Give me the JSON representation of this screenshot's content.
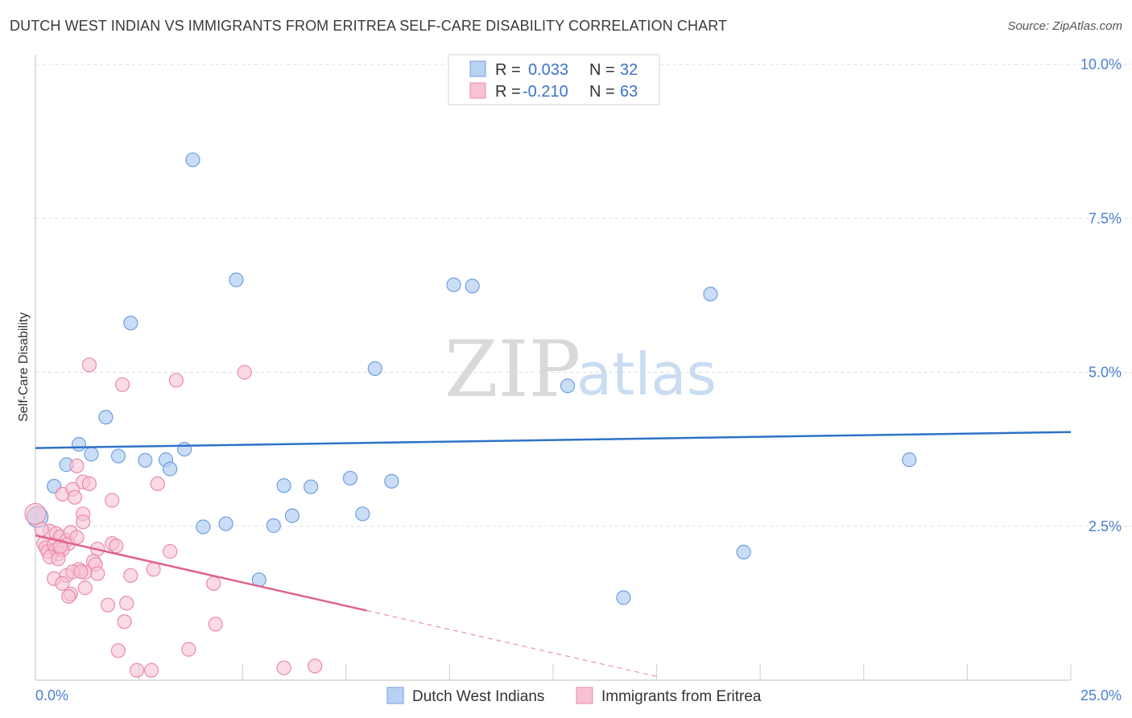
{
  "header": {
    "title": "DUTCH WEST INDIAN VS IMMIGRANTS FROM ERITREA SELF-CARE DISABILITY CORRELATION CHART",
    "source": "Source: ZipAtlas.com"
  },
  "watermark": {
    "zip": "ZIP",
    "atlas": "atlas"
  },
  "colors": {
    "blue_fill": "#b8d2f3",
    "blue_stroke": "#6e9fe0",
    "blue_line": "#2f72c8",
    "pink_fill": "#f7c3d3",
    "pink_stroke": "#ec8aa8",
    "pink_line": "#e0628d",
    "grid": "#dddddd",
    "tick_label": "#4a7fd0"
  },
  "legend": {
    "rows": [
      {
        "r_label": "R =",
        "r_value": "0.033",
        "n_label": "N =",
        "n_value": "32"
      },
      {
        "r_label": "R =",
        "r_value": "-0.210",
        "n_label": "N =",
        "n_value": "63"
      }
    ]
  },
  "chart_data": {
    "type": "scatter",
    "title": "DUTCH WEST INDIAN VS IMMIGRANTS FROM ERITREA SELF-CARE DISABILITY CORRELATION CHART",
    "xlabel": "",
    "ylabel": "Self-Care Disability",
    "xlim": [
      0,
      25
    ],
    "ylim": [
      0,
      10
    ],
    "x_tick_labels": [
      {
        "value": 0,
        "label": "0.0%"
      },
      {
        "value": 25,
        "label": "25.0%"
      }
    ],
    "y_tick_labels": [
      {
        "value": 2.5,
        "label": "2.5%"
      },
      {
        "value": 5.0,
        "label": "5.0%"
      },
      {
        "value": 7.5,
        "label": "7.5%"
      },
      {
        "value": 10.0,
        "label": "10.0%"
      }
    ],
    "grid": true,
    "legend_position": "top-center",
    "series": [
      {
        "name": "Dutch West Indians",
        "color": "#6e9fe0",
        "r": 0.033,
        "n": 32,
        "trend": {
          "x": [
            0,
            25
          ],
          "y": [
            3.77,
            4.03
          ]
        },
        "points": [
          [
            3.8,
            8.45
          ],
          [
            4.85,
            6.5
          ],
          [
            2.3,
            5.8
          ],
          [
            10.1,
            6.42
          ],
          [
            10.55,
            6.4
          ],
          [
            16.3,
            6.27
          ],
          [
            8.2,
            5.06
          ],
          [
            12.85,
            4.78
          ],
          [
            1.7,
            4.27
          ],
          [
            1.05,
            3.83
          ],
          [
            1.35,
            3.67
          ],
          [
            2.0,
            3.64
          ],
          [
            3.6,
            3.75
          ],
          [
            0.75,
            3.5
          ],
          [
            2.65,
            3.57
          ],
          [
            3.15,
            3.58
          ],
          [
            3.25,
            3.43
          ],
          [
            0.45,
            3.15
          ],
          [
            6.0,
            3.16
          ],
          [
            6.65,
            3.14
          ],
          [
            7.6,
            3.28
          ],
          [
            8.6,
            3.23
          ],
          [
            21.1,
            3.58
          ],
          [
            4.05,
            2.49
          ],
          [
            4.6,
            2.54
          ],
          [
            5.75,
            2.51
          ],
          [
            6.2,
            2.67
          ],
          [
            7.9,
            2.7
          ],
          [
            17.1,
            2.08
          ],
          [
            5.4,
            1.63
          ],
          [
            14.2,
            1.34
          ],
          [
            0.05,
            2.65
          ]
        ]
      },
      {
        "name": "Immigrants from Eritrea",
        "color": "#ec8aa8",
        "r": -0.21,
        "n": 63,
        "trend": {
          "x": [
            0,
            8.0
          ],
          "y": [
            2.35,
            1.13
          ]
        },
        "trend_dashed": {
          "x": [
            8.0,
            15.0
          ],
          "y": [
            1.13,
            0.06
          ]
        },
        "points": [
          [
            1.3,
            5.12
          ],
          [
            2.1,
            4.8
          ],
          [
            3.4,
            4.87
          ],
          [
            5.05,
            5.0
          ],
          [
            1.0,
            3.48
          ],
          [
            0.65,
            3.02
          ],
          [
            0.9,
            3.1
          ],
          [
            1.15,
            3.22
          ],
          [
            1.3,
            3.19
          ],
          [
            2.95,
            3.19
          ],
          [
            1.85,
            2.92
          ],
          [
            0.95,
            2.97
          ],
          [
            1.15,
            2.7
          ],
          [
            0.0,
            2.7
          ],
          [
            1.15,
            2.57
          ],
          [
            0.35,
            2.42
          ],
          [
            0.5,
            2.38
          ],
          [
            0.6,
            2.33
          ],
          [
            0.75,
            2.27
          ],
          [
            0.8,
            2.22
          ],
          [
            0.85,
            2.4
          ],
          [
            1.0,
            2.32
          ],
          [
            0.2,
            2.22
          ],
          [
            0.25,
            2.15
          ],
          [
            0.3,
            2.09
          ],
          [
            0.45,
            2.2
          ],
          [
            0.5,
            2.12
          ],
          [
            0.55,
            2.05
          ],
          [
            0.65,
            2.12
          ],
          [
            0.35,
            2.0
          ],
          [
            0.55,
            1.97
          ],
          [
            1.85,
            2.22
          ],
          [
            1.5,
            2.13
          ],
          [
            3.25,
            2.09
          ],
          [
            1.4,
            1.93
          ],
          [
            1.45,
            1.88
          ],
          [
            1.05,
            1.8
          ],
          [
            1.2,
            1.75
          ],
          [
            0.75,
            1.7
          ],
          [
            0.45,
            1.65
          ],
          [
            1.5,
            1.73
          ],
          [
            2.3,
            1.7
          ],
          [
            2.85,
            1.8
          ],
          [
            4.3,
            1.57
          ],
          [
            0.65,
            1.57
          ],
          [
            1.2,
            1.5
          ],
          [
            0.85,
            1.4
          ],
          [
            0.8,
            1.36
          ],
          [
            1.75,
            1.22
          ],
          [
            2.2,
            1.25
          ],
          [
            2.15,
            0.95
          ],
          [
            4.35,
            0.91
          ],
          [
            2.0,
            0.48
          ],
          [
            3.7,
            0.5
          ],
          [
            2.45,
            0.16
          ],
          [
            2.8,
            0.16
          ],
          [
            6.0,
            0.2
          ],
          [
            6.75,
            0.23
          ],
          [
            0.9,
            1.76
          ],
          [
            0.6,
            2.17
          ],
          [
            1.95,
            2.18
          ],
          [
            0.15,
            2.45
          ],
          [
            1.1,
            1.76
          ]
        ]
      }
    ]
  }
}
